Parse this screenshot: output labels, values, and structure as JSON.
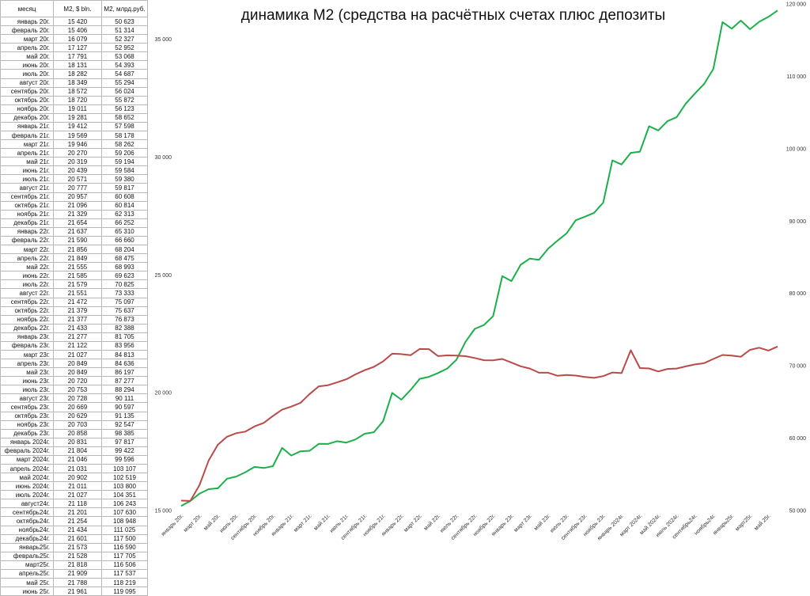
{
  "chart_data": {
    "type": "line",
    "title": "динамика М2 (средства на расчётных счетах плюс депозиты",
    "xlabel": "",
    "ylabel": "",
    "grid": false,
    "legend": "none",
    "y_left": {
      "ylim": [
        15000,
        36500
      ],
      "ticks": [
        "15 000",
        "20 000",
        "25 000",
        "30 000",
        "35 000"
      ],
      "tick_values": [
        15000,
        20000,
        25000,
        30000,
        35000
      ]
    },
    "y_right": {
      "ylim": [
        50000,
        120000
      ],
      "ticks": [
        "50 000",
        "60 000",
        "70 000",
        "80 000",
        "90 000",
        "100 000",
        "110 000",
        "120 000"
      ],
      "tick_values": [
        50000,
        60000,
        70000,
        80000,
        90000,
        100000,
        110000,
        120000
      ]
    },
    "x_tick_labels": [
      "январь 20г.",
      "март 20г.",
      "май 20г.",
      "июль 20г.",
      "сентябрь 20г.",
      "ноябрь 20г.",
      "январь 21г.",
      "март 21г.",
      "май 21г.",
      "июль 21г.",
      "сентябрь 21г.",
      "ноябрь 21г.",
      "январь 22г.",
      "март 22г.",
      "май 22г.",
      "июль 22г.",
      "сентябрь 22г.",
      "ноябрь 22г.",
      "январь 23г.",
      "март 23г.",
      "май 23г.",
      "июль 23г.",
      "сентябрь 23г.",
      "ноябрь 23г.",
      "январь 2024г.",
      "март 2024г.",
      "май 2024г.",
      "июль 2024г.",
      "сентябрь24г.",
      "ноябрь24г.",
      "январь25г.",
      "март25г.",
      "май 25г."
    ],
    "series": [
      {
        "axis": "left",
        "color": "#b94a48"
      },
      {
        "axis": "right",
        "color": "#1bb04a"
      }
    ]
  },
  "table": {
    "headers": [
      "месяц",
      "M2, $ bln.",
      "M2, млрд.руб."
    ],
    "rows": [
      [
        "январь 20г.",
        "15 420",
        "50 623"
      ],
      [
        "февраль 20г.",
        "15 406",
        "51 314"
      ],
      [
        "март 20г.",
        "16 079",
        "52 327"
      ],
      [
        "апрель 20г.",
        "17 127",
        "52 952"
      ],
      [
        "май 20г.",
        "17 791",
        "53 068"
      ],
      [
        "июнь 20г.",
        "18 131",
        "54 393"
      ],
      [
        "июль 20г.",
        "18 282",
        "54 687"
      ],
      [
        "август 20г.",
        "18 349",
        "55 294"
      ],
      [
        "сентябрь 20г.",
        "18 572",
        "56 024"
      ],
      [
        "октябрь 20г.",
        "18 720",
        "55 872"
      ],
      [
        "ноябрь 20г.",
        "19 011",
        "56 123"
      ],
      [
        "декабрь 20г.",
        "19 281",
        "58 652"
      ],
      [
        "январь 21г.",
        "19 412",
        "57 598"
      ],
      [
        "февраль 21г.",
        "19 569",
        "58 178"
      ],
      [
        "март 21г.",
        "19 946",
        "58 262"
      ],
      [
        "апрель 21г.",
        "20 270",
        "59 206"
      ],
      [
        "май 21г.",
        "20 319",
        "59 194"
      ],
      [
        "июнь 21г.",
        "20 439",
        "59 584"
      ],
      [
        "июль 21г.",
        "20 571",
        "59 380"
      ],
      [
        "август 21г.",
        "20 777",
        "59 817"
      ],
      [
        "сентябрь 21г.",
        "20 957",
        "60 608"
      ],
      [
        "октябрь 21г.",
        "21 096",
        "60 814"
      ],
      [
        "ноябрь 21г.",
        "21 329",
        "62 313"
      ],
      [
        "декабрь 21г.",
        "21 654",
        "66 252"
      ],
      [
        "январь 22г.",
        "21 637",
        "65 310"
      ],
      [
        "февраль 22г.",
        "21 590",
        "66 660"
      ],
      [
        "март 22г.",
        "21 856",
        "68 204"
      ],
      [
        "апрель 22г.",
        "21 849",
        "68 475"
      ],
      [
        "май 22г.",
        "21 555",
        "68 993"
      ],
      [
        "июнь 22г.",
        "21 585",
        "69 623"
      ],
      [
        "июль 22г.",
        "21 579",
        "70 825"
      ],
      [
        "август 22г.",
        "21 551",
        "73 333"
      ],
      [
        "сентябрь 22г.",
        "21 472",
        "75 097"
      ],
      [
        "октябрь 22г.",
        "21 379",
        "75 637"
      ],
      [
        "ноябрь 22г.",
        "21 377",
        "76 873"
      ],
      [
        "декабрь 22г.",
        "21 433",
        "82 388"
      ],
      [
        "январь 23г.",
        "21 277",
        "81 705"
      ],
      [
        "февраль 23г.",
        "21 122",
        "83 956"
      ],
      [
        "март 23г.",
        "21 027",
        "84 813"
      ],
      [
        "апрель 23г.",
        "20 849",
        "84 636"
      ],
      [
        "май 23г.",
        "20 849",
        "86 197"
      ],
      [
        "июнь 23г.",
        "20 720",
        "87 277"
      ],
      [
        "июль 23г.",
        "20 753",
        "88 294"
      ],
      [
        "август 23г.",
        "20 728",
        "90 111"
      ],
      [
        "сентябрь 23г.",
        "20 669",
        "90 597"
      ],
      [
        "октябрь 23г.",
        "20 629",
        "91 135"
      ],
      [
        "ноябрь 23г.",
        "20 703",
        "92 547"
      ],
      [
        "декабрь 23г.",
        "20 858",
        "98 385"
      ],
      [
        "январь 2024г.",
        "20 831",
        "97 817"
      ],
      [
        "февраль 2024г.",
        "21 804",
        "99 422"
      ],
      [
        "март 2024г.",
        "21 046",
        "99 596"
      ],
      [
        "апрель 2024г.",
        "21 031",
        "103 107"
      ],
      [
        "май 2024г.",
        "20 902",
        "102 519"
      ],
      [
        "июнь 2024г.",
        "21 011",
        "103 800"
      ],
      [
        "июль 2024г.",
        "21 027",
        "104 351"
      ],
      [
        "август24г.",
        "21 118",
        "106 243"
      ],
      [
        "сентябрь24г.",
        "21 201",
        "107 630"
      ],
      [
        "октябрь24г.",
        "21 254",
        "108 948"
      ],
      [
        "ноябрь24г.",
        "21 434",
        "111 025"
      ],
      [
        "декабрь24г.",
        "21 601",
        "117 500"
      ],
      [
        "январь25г.",
        "21 573",
        "116 590"
      ],
      [
        "февраль25г.",
        "21 528",
        "117 705"
      ],
      [
        "март25г.",
        "21 818",
        "116 506"
      ],
      [
        "апрель25г.",
        "21 909",
        "117 537"
      ],
      [
        "май 25г.",
        "21 788",
        "118 219"
      ],
      [
        "июнь 25г.",
        "21 961",
        "119 095"
      ]
    ]
  }
}
